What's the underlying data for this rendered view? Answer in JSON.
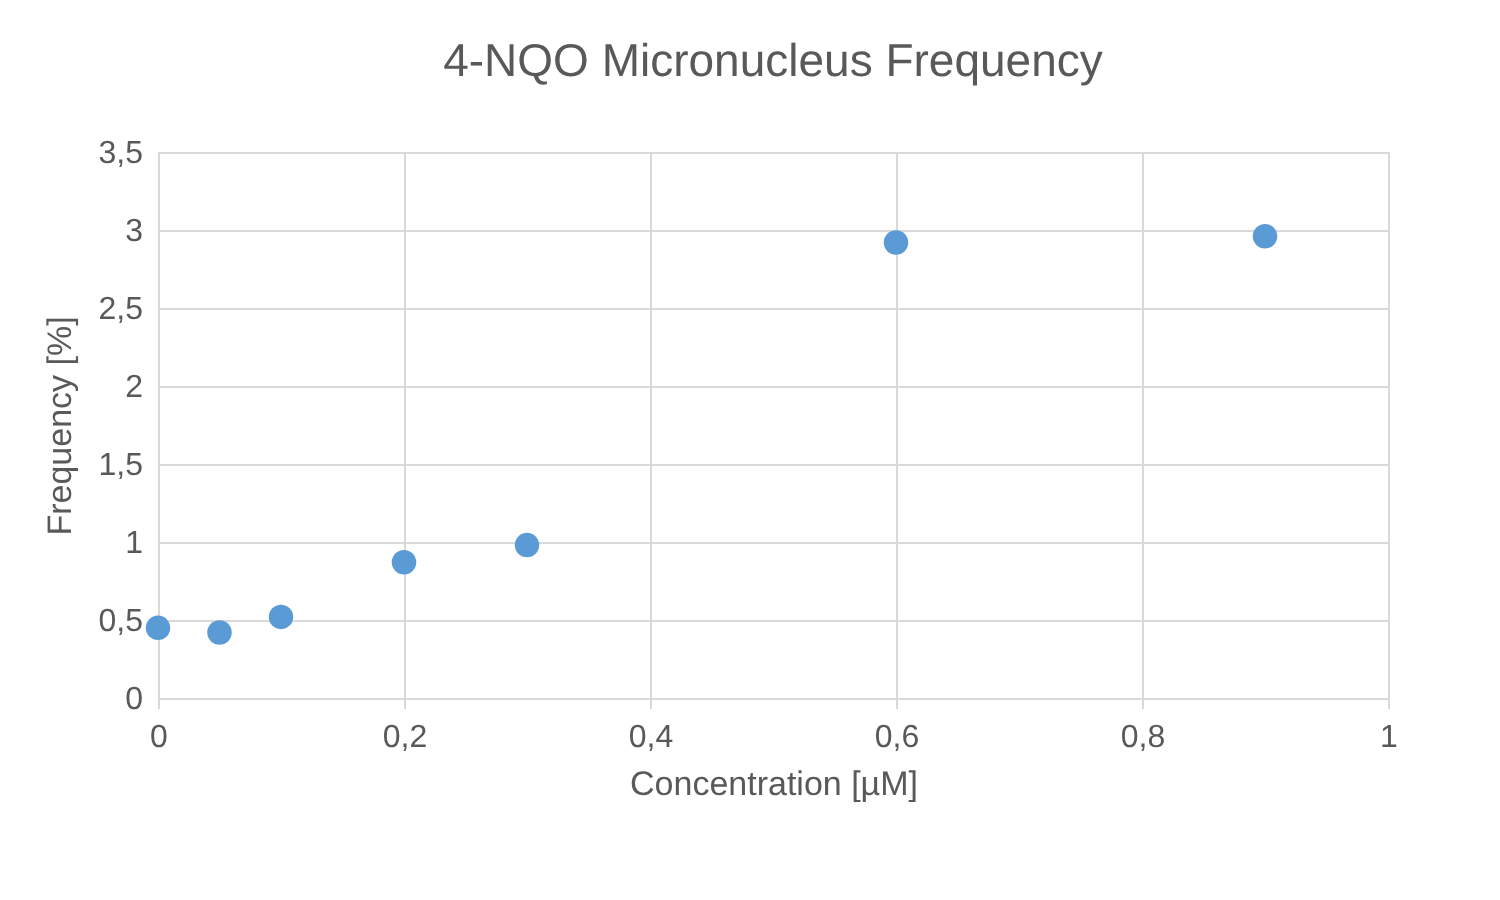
{
  "chart_data": {
    "type": "scatter",
    "title": "4-NQO Micronucleus Frequency",
    "xlabel": "Concentration [µM]",
    "ylabel": "Frequency [%]",
    "x": [
      0,
      0.05,
      0.1,
      0.2,
      0.3,
      0.6,
      0.9
    ],
    "series": [
      {
        "color": "#5b9bd5",
        "values": [
          0.45,
          0.42,
          0.52,
          0.87,
          0.98,
          2.92,
          2.96
        ]
      }
    ],
    "xlim": [
      0,
      1
    ],
    "ylim": [
      0,
      3.5
    ],
    "xticks": [
      0,
      {
        "value": 0.2,
        "label": "0,2"
      },
      {
        "value": 0.4,
        "label": "0,4"
      },
      {
        "value": 0.6,
        "label": "0,6"
      },
      {
        "value": 0.8,
        "label": "0,8"
      },
      1
    ],
    "yticks": [
      0,
      {
        "value": 0.5,
        "label": "0,5"
      },
      1,
      {
        "value": 1.5,
        "label": "1,5"
      },
      2,
      {
        "value": 2.5,
        "label": "2,5"
      },
      3,
      {
        "value": 3.5,
        "label": "3,5"
      }
    ],
    "grid": true,
    "marker": "circle"
  }
}
